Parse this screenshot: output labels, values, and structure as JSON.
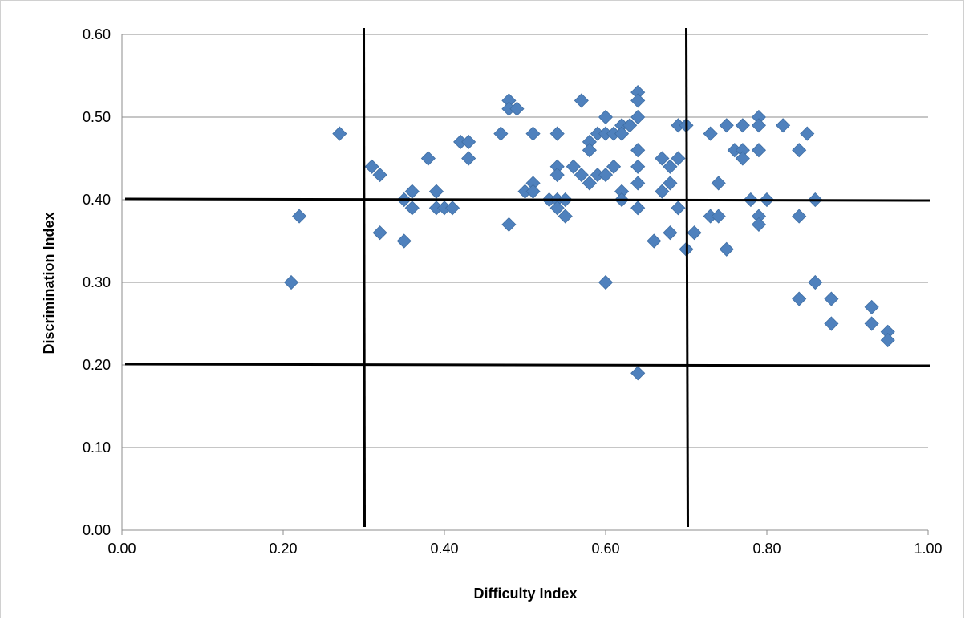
{
  "chart_data": {
    "type": "scatter",
    "title": "",
    "xlabel": "Difficulty Index",
    "ylabel": "Discrimination Index",
    "xlim": [
      0,
      1
    ],
    "ylim": [
      0,
      0.6
    ],
    "x_ticks": [
      "0.00",
      "0.20",
      "0.40",
      "0.60",
      "0.80",
      "1.00"
    ],
    "y_ticks": [
      "0.00",
      "0.10",
      "0.20",
      "0.30",
      "0.40",
      "0.50",
      "0.60"
    ],
    "grid": "horizontal",
    "legend": "none",
    "marker": "diamond",
    "marker_color": "#4F81BD",
    "reference_lines": {
      "vertical_x": [
        0.3,
        0.7
      ],
      "horizontal_y": [
        0.2,
        0.4
      ],
      "color": "#000000"
    },
    "points": [
      {
        "x": 0.21,
        "y": 0.3
      },
      {
        "x": 0.22,
        "y": 0.38
      },
      {
        "x": 0.27,
        "y": 0.48
      },
      {
        "x": 0.31,
        "y": 0.44
      },
      {
        "x": 0.32,
        "y": 0.43
      },
      {
        "x": 0.32,
        "y": 0.36
      },
      {
        "x": 0.35,
        "y": 0.35
      },
      {
        "x": 0.35,
        "y": 0.4
      },
      {
        "x": 0.36,
        "y": 0.41
      },
      {
        "x": 0.36,
        "y": 0.39
      },
      {
        "x": 0.38,
        "y": 0.45
      },
      {
        "x": 0.39,
        "y": 0.41
      },
      {
        "x": 0.39,
        "y": 0.39
      },
      {
        "x": 0.4,
        "y": 0.39
      },
      {
        "x": 0.41,
        "y": 0.39
      },
      {
        "x": 0.42,
        "y": 0.47
      },
      {
        "x": 0.43,
        "y": 0.47
      },
      {
        "x": 0.43,
        "y": 0.45
      },
      {
        "x": 0.47,
        "y": 0.48
      },
      {
        "x": 0.48,
        "y": 0.52
      },
      {
        "x": 0.48,
        "y": 0.51
      },
      {
        "x": 0.49,
        "y": 0.51
      },
      {
        "x": 0.48,
        "y": 0.37
      },
      {
        "x": 0.5,
        "y": 0.41
      },
      {
        "x": 0.51,
        "y": 0.42
      },
      {
        "x": 0.51,
        "y": 0.41
      },
      {
        "x": 0.51,
        "y": 0.48
      },
      {
        "x": 0.53,
        "y": 0.4
      },
      {
        "x": 0.54,
        "y": 0.48
      },
      {
        "x": 0.54,
        "y": 0.44
      },
      {
        "x": 0.54,
        "y": 0.43
      },
      {
        "x": 0.54,
        "y": 0.4
      },
      {
        "x": 0.54,
        "y": 0.39
      },
      {
        "x": 0.55,
        "y": 0.4
      },
      {
        "x": 0.55,
        "y": 0.38
      },
      {
        "x": 0.56,
        "y": 0.44
      },
      {
        "x": 0.57,
        "y": 0.52
      },
      {
        "x": 0.57,
        "y": 0.43
      },
      {
        "x": 0.58,
        "y": 0.47
      },
      {
        "x": 0.58,
        "y": 0.46
      },
      {
        "x": 0.58,
        "y": 0.42
      },
      {
        "x": 0.59,
        "y": 0.48
      },
      {
        "x": 0.59,
        "y": 0.43
      },
      {
        "x": 0.6,
        "y": 0.5
      },
      {
        "x": 0.6,
        "y": 0.48
      },
      {
        "x": 0.6,
        "y": 0.43
      },
      {
        "x": 0.6,
        "y": 0.3
      },
      {
        "x": 0.61,
        "y": 0.48
      },
      {
        "x": 0.61,
        "y": 0.44
      },
      {
        "x": 0.62,
        "y": 0.49
      },
      {
        "x": 0.62,
        "y": 0.48
      },
      {
        "x": 0.62,
        "y": 0.41
      },
      {
        "x": 0.62,
        "y": 0.4
      },
      {
        "x": 0.63,
        "y": 0.49
      },
      {
        "x": 0.64,
        "y": 0.53
      },
      {
        "x": 0.64,
        "y": 0.52
      },
      {
        "x": 0.64,
        "y": 0.5
      },
      {
        "x": 0.64,
        "y": 0.46
      },
      {
        "x": 0.64,
        "y": 0.44
      },
      {
        "x": 0.64,
        "y": 0.42
      },
      {
        "x": 0.64,
        "y": 0.39
      },
      {
        "x": 0.64,
        "y": 0.19
      },
      {
        "x": 0.66,
        "y": 0.35
      },
      {
        "x": 0.67,
        "y": 0.45
      },
      {
        "x": 0.67,
        "y": 0.41
      },
      {
        "x": 0.68,
        "y": 0.44
      },
      {
        "x": 0.68,
        "y": 0.42
      },
      {
        "x": 0.68,
        "y": 0.36
      },
      {
        "x": 0.69,
        "y": 0.49
      },
      {
        "x": 0.69,
        "y": 0.45
      },
      {
        "x": 0.69,
        "y": 0.39
      },
      {
        "x": 0.7,
        "y": 0.49
      },
      {
        "x": 0.7,
        "y": 0.34
      },
      {
        "x": 0.71,
        "y": 0.36
      },
      {
        "x": 0.73,
        "y": 0.48
      },
      {
        "x": 0.73,
        "y": 0.38
      },
      {
        "x": 0.74,
        "y": 0.42
      },
      {
        "x": 0.74,
        "y": 0.38
      },
      {
        "x": 0.75,
        "y": 0.49
      },
      {
        "x": 0.75,
        "y": 0.34
      },
      {
        "x": 0.76,
        "y": 0.46
      },
      {
        "x": 0.77,
        "y": 0.49
      },
      {
        "x": 0.77,
        "y": 0.46
      },
      {
        "x": 0.77,
        "y": 0.45
      },
      {
        "x": 0.78,
        "y": 0.4
      },
      {
        "x": 0.79,
        "y": 0.5
      },
      {
        "x": 0.79,
        "y": 0.49
      },
      {
        "x": 0.79,
        "y": 0.46
      },
      {
        "x": 0.79,
        "y": 0.38
      },
      {
        "x": 0.79,
        "y": 0.37
      },
      {
        "x": 0.8,
        "y": 0.4
      },
      {
        "x": 0.82,
        "y": 0.49
      },
      {
        "x": 0.84,
        "y": 0.46
      },
      {
        "x": 0.84,
        "y": 0.38
      },
      {
        "x": 0.84,
        "y": 0.28
      },
      {
        "x": 0.85,
        "y": 0.48
      },
      {
        "x": 0.86,
        "y": 0.4
      },
      {
        "x": 0.86,
        "y": 0.3
      },
      {
        "x": 0.88,
        "y": 0.28
      },
      {
        "x": 0.88,
        "y": 0.25
      },
      {
        "x": 0.93,
        "y": 0.27
      },
      {
        "x": 0.93,
        "y": 0.25
      },
      {
        "x": 0.95,
        "y": 0.24
      },
      {
        "x": 0.95,
        "y": 0.23
      }
    ]
  }
}
